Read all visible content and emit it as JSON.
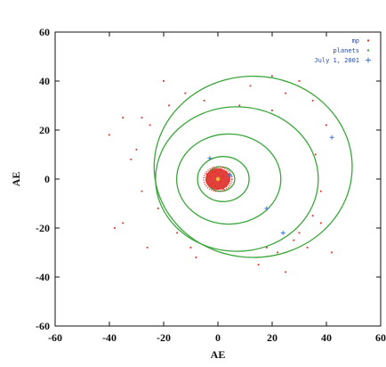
{
  "chart_data": {
    "type": "scatter",
    "title": "",
    "xlabel": "AE",
    "ylabel": "AE",
    "xlim": [
      -60,
      60
    ],
    "ylim": [
      -60,
      60
    ],
    "x_ticks": [
      -60,
      -40,
      -20,
      0,
      20,
      40,
      60
    ],
    "y_ticks": [
      -60,
      -40,
      -20,
      0,
      20,
      40,
      60
    ],
    "grid": false,
    "legend_position": "top-right",
    "series": [
      {
        "name": "mp",
        "color": "#e0312a",
        "marker": "dot",
        "points": [
          [
            -2,
            -2
          ],
          [
            -1,
            3
          ],
          [
            2,
            1
          ],
          [
            3,
            -3
          ],
          [
            -3,
            1
          ],
          [
            1,
            4
          ],
          [
            0,
            -4
          ],
          [
            -4,
            -1
          ],
          [
            4,
            2
          ],
          [
            2,
            -4
          ],
          [
            -2,
            3
          ],
          [
            3,
            3
          ],
          [
            -3,
            -3
          ],
          [
            1,
            -1
          ],
          [
            0,
            2
          ],
          [
            -1,
            -3
          ],
          [
            4,
            -1
          ],
          [
            -4,
            2
          ],
          [
            -30,
            12
          ],
          [
            -28,
            -5
          ],
          [
            -25,
            22
          ],
          [
            -18,
            30
          ],
          [
            -22,
            -12
          ],
          [
            -35,
            -18
          ],
          [
            -38,
            -20
          ],
          [
            -32,
            8
          ],
          [
            -15,
            -22
          ],
          [
            -26,
            -28
          ],
          [
            -12,
            35
          ],
          [
            -20,
            40
          ],
          [
            12,
            38
          ],
          [
            20,
            42
          ],
          [
            25,
            35
          ],
          [
            30,
            40
          ],
          [
            35,
            32
          ],
          [
            22,
            -30
          ],
          [
            28,
            -25
          ],
          [
            33,
            -28
          ],
          [
            38,
            -18
          ],
          [
            35,
            -15
          ],
          [
            30,
            -22
          ],
          [
            18,
            -28
          ],
          [
            40,
            22
          ],
          [
            38,
            -5
          ],
          [
            36,
            10
          ],
          [
            15,
            -35
          ],
          [
            25,
            -38
          ],
          [
            -8,
            -32
          ],
          [
            -5,
            32
          ],
          [
            8,
            30
          ],
          [
            -40,
            18
          ],
          [
            -35,
            25
          ],
          [
            42,
            -30
          ],
          [
            20,
            28
          ],
          [
            -10,
            -28
          ],
          [
            -28,
            25
          ]
        ]
      },
      {
        "name": "planets",
        "color": "#3aa63a",
        "marker": "orbit",
        "orbits": [
          {
            "cx": 1,
            "cy": 0,
            "rx": 5.2,
            "ry": 5.0
          },
          {
            "cx": 2,
            "cy": 0,
            "rx": 9.5,
            "ry": 9.2
          },
          {
            "cx": 4,
            "cy": 0,
            "rx": 19.2,
            "ry": 18.4
          },
          {
            "cx": 7,
            "cy": 0,
            "rx": 30.0,
            "ry": 29.5
          },
          {
            "cx": 13,
            "cy": 5,
            "rx": 36.5,
            "ry": 37.0
          }
        ]
      },
      {
        "name": "July 1, 2001",
        "color": "#3a7ad0",
        "marker": "plus",
        "points": [
          [
            4.5,
            1.5
          ],
          [
            -3,
            8.5
          ],
          [
            18,
            -12
          ],
          [
            24,
            -22
          ],
          [
            42,
            17
          ]
        ]
      }
    ]
  },
  "colors": {
    "background": "#ffffff",
    "frame": "#111111",
    "core_cluster": "#e0312a",
    "sun": "#f2c037"
  }
}
